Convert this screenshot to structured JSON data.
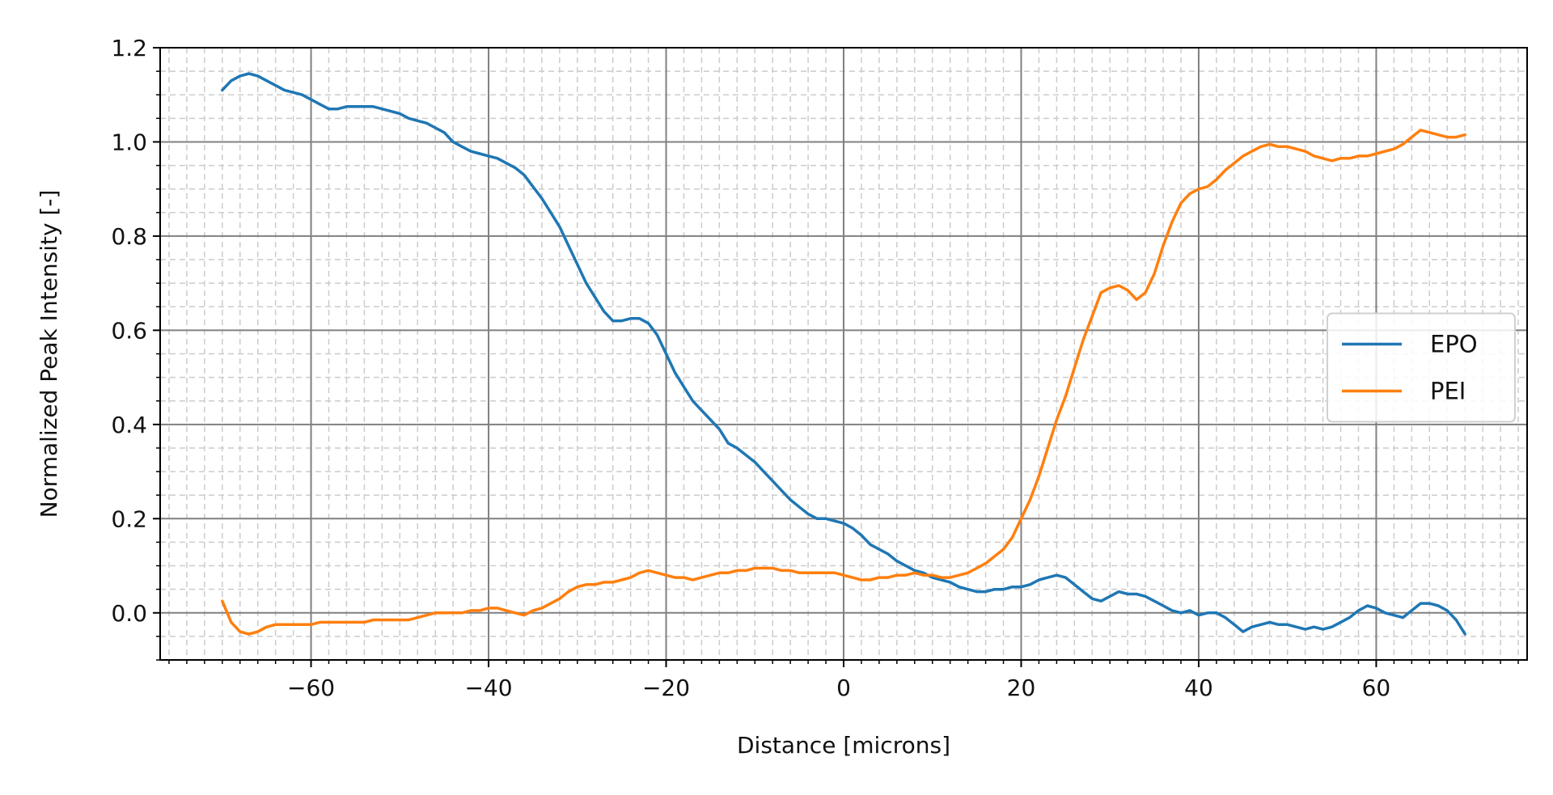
{
  "chart_data": {
    "type": "line",
    "title": "",
    "xlabel": "Distance [microns]",
    "ylabel": "Normalized Peak Intensity [-]",
    "xlim": [
      -77,
      77
    ],
    "ylim": [
      -0.1,
      1.2
    ],
    "x_ticks": [
      -60,
      -40,
      -20,
      0,
      20,
      40,
      60
    ],
    "x_tick_labels": [
      "−60",
      "−40",
      "−20",
      "0",
      "20",
      "40",
      "60"
    ],
    "y_ticks": [
      0.0,
      0.2,
      0.4,
      0.6,
      0.8,
      1.0,
      1.2
    ],
    "y_tick_labels": [
      "0.0",
      "0.2",
      "0.4",
      "0.6",
      "0.8",
      "1.0",
      "1.2"
    ],
    "x_minor_step": 2,
    "y_minor_step": 0.05,
    "grid": true,
    "legend_position": "center-right",
    "series": [
      {
        "name": "EPO",
        "color": "#1f77b4",
        "points": [
          [
            -70,
            1.11
          ],
          [
            -69,
            1.13
          ],
          [
            -68,
            1.14
          ],
          [
            -67,
            1.145
          ],
          [
            -66,
            1.14
          ],
          [
            -65,
            1.13
          ],
          [
            -64,
            1.12
          ],
          [
            -63,
            1.11
          ],
          [
            -62,
            1.105
          ],
          [
            -61,
            1.1
          ],
          [
            -60,
            1.09
          ],
          [
            -59,
            1.08
          ],
          [
            -58,
            1.07
          ],
          [
            -57,
            1.07
          ],
          [
            -56,
            1.075
          ],
          [
            -55,
            1.075
          ],
          [
            -54,
            1.075
          ],
          [
            -53,
            1.075
          ],
          [
            -52,
            1.07
          ],
          [
            -51,
            1.065
          ],
          [
            -50,
            1.06
          ],
          [
            -49,
            1.05
          ],
          [
            -48,
            1.045
          ],
          [
            -47,
            1.04
          ],
          [
            -46,
            1.03
          ],
          [
            -45,
            1.02
          ],
          [
            -44,
            1.0
          ],
          [
            -43,
            0.99
          ],
          [
            -42,
            0.98
          ],
          [
            -41,
            0.975
          ],
          [
            -40,
            0.97
          ],
          [
            -39,
            0.965
          ],
          [
            -38,
            0.955
          ],
          [
            -37,
            0.945
          ],
          [
            -36,
            0.93
          ],
          [
            -35,
            0.905
          ],
          [
            -34,
            0.88
          ],
          [
            -33,
            0.85
          ],
          [
            -32,
            0.82
          ],
          [
            -31,
            0.78
          ],
          [
            -30,
            0.74
          ],
          [
            -29,
            0.7
          ],
          [
            -28,
            0.67
          ],
          [
            -27,
            0.64
          ],
          [
            -26,
            0.62
          ],
          [
            -25,
            0.62
          ],
          [
            -24,
            0.625
          ],
          [
            -23,
            0.625
          ],
          [
            -22,
            0.615
          ],
          [
            -21,
            0.59
          ],
          [
            -20,
            0.55
          ],
          [
            -19,
            0.51
          ],
          [
            -18,
            0.48
          ],
          [
            -17,
            0.45
          ],
          [
            -16,
            0.43
          ],
          [
            -15,
            0.41
          ],
          [
            -14,
            0.39
          ],
          [
            -13,
            0.36
          ],
          [
            -12,
            0.35
          ],
          [
            -11,
            0.335
          ],
          [
            -10,
            0.32
          ],
          [
            -9,
            0.3
          ],
          [
            -8,
            0.28
          ],
          [
            -7,
            0.26
          ],
          [
            -6,
            0.24
          ],
          [
            -5,
            0.225
          ],
          [
            -4,
            0.21
          ],
          [
            -3,
            0.2
          ],
          [
            -2,
            0.2
          ],
          [
            -1,
            0.195
          ],
          [
            0,
            0.19
          ],
          [
            1,
            0.18
          ],
          [
            2,
            0.165
          ],
          [
            3,
            0.145
          ],
          [
            4,
            0.135
          ],
          [
            5,
            0.125
          ],
          [
            6,
            0.11
          ],
          [
            7,
            0.1
          ],
          [
            8,
            0.09
          ],
          [
            9,
            0.085
          ],
          [
            10,
            0.075
          ],
          [
            11,
            0.07
          ],
          [
            12,
            0.065
          ],
          [
            13,
            0.055
          ],
          [
            14,
            0.05
          ],
          [
            15,
            0.045
          ],
          [
            16,
            0.045
          ],
          [
            17,
            0.05
          ],
          [
            18,
            0.05
          ],
          [
            19,
            0.055
          ],
          [
            20,
            0.055
          ],
          [
            21,
            0.06
          ],
          [
            22,
            0.07
          ],
          [
            23,
            0.075
          ],
          [
            24,
            0.08
          ],
          [
            25,
            0.075
          ],
          [
            26,
            0.06
          ],
          [
            27,
            0.045
          ],
          [
            28,
            0.03
          ],
          [
            29,
            0.025
          ],
          [
            30,
            0.035
          ],
          [
            31,
            0.045
          ],
          [
            32,
            0.04
          ],
          [
            33,
            0.04
          ],
          [
            34,
            0.035
          ],
          [
            35,
            0.025
          ],
          [
            36,
            0.015
          ],
          [
            37,
            0.005
          ],
          [
            38,
            0.0
          ],
          [
            39,
            0.005
          ],
          [
            40,
            -0.005
          ],
          [
            41,
            0.0
          ],
          [
            42,
            0.0
          ],
          [
            43,
            -0.01
          ],
          [
            44,
            -0.025
          ],
          [
            45,
            -0.04
          ],
          [
            46,
            -0.03
          ],
          [
            47,
            -0.025
          ],
          [
            48,
            -0.02
          ],
          [
            49,
            -0.025
          ],
          [
            50,
            -0.025
          ],
          [
            51,
            -0.03
          ],
          [
            52,
            -0.035
          ],
          [
            53,
            -0.03
          ],
          [
            54,
            -0.035
          ],
          [
            55,
            -0.03
          ],
          [
            56,
            -0.02
          ],
          [
            57,
            -0.01
          ],
          [
            58,
            0.005
          ],
          [
            59,
            0.015
          ],
          [
            60,
            0.01
          ],
          [
            61,
            0.0
          ],
          [
            62,
            -0.005
          ],
          [
            63,
            -0.01
          ],
          [
            64,
            0.005
          ],
          [
            65,
            0.02
          ],
          [
            66,
            0.02
          ],
          [
            67,
            0.015
          ],
          [
            68,
            0.005
          ],
          [
            69,
            -0.015
          ],
          [
            70,
            -0.045
          ]
        ]
      },
      {
        "name": "PEI",
        "color": "#ff7f0e",
        "points": [
          [
            -70,
            0.025
          ],
          [
            -69,
            -0.02
          ],
          [
            -68,
            -0.04
          ],
          [
            -67,
            -0.045
          ],
          [
            -66,
            -0.04
          ],
          [
            -65,
            -0.03
          ],
          [
            -64,
            -0.025
          ],
          [
            -63,
            -0.025
          ],
          [
            -62,
            -0.025
          ],
          [
            -61,
            -0.025
          ],
          [
            -60,
            -0.025
          ],
          [
            -59,
            -0.02
          ],
          [
            -58,
            -0.02
          ],
          [
            -57,
            -0.02
          ],
          [
            -56,
            -0.02
          ],
          [
            -55,
            -0.02
          ],
          [
            -54,
            -0.02
          ],
          [
            -53,
            -0.015
          ],
          [
            -52,
            -0.015
          ],
          [
            -51,
            -0.015
          ],
          [
            -50,
            -0.015
          ],
          [
            -49,
            -0.015
          ],
          [
            -48,
            -0.01
          ],
          [
            -47,
            -0.005
          ],
          [
            -46,
            0.0
          ],
          [
            -45,
            0.0
          ],
          [
            -44,
            0.0
          ],
          [
            -43,
            0.0
          ],
          [
            -42,
            0.005
          ],
          [
            -41,
            0.005
          ],
          [
            -40,
            0.01
          ],
          [
            -39,
            0.01
          ],
          [
            -38,
            0.005
          ],
          [
            -37,
            0.0
          ],
          [
            -36,
            -0.005
          ],
          [
            -35,
            0.005
          ],
          [
            -34,
            0.01
          ],
          [
            -33,
            0.02
          ],
          [
            -32,
            0.03
          ],
          [
            -31,
            0.045
          ],
          [
            -30,
            0.055
          ],
          [
            -29,
            0.06
          ],
          [
            -28,
            0.06
          ],
          [
            -27,
            0.065
          ],
          [
            -26,
            0.065
          ],
          [
            -25,
            0.07
          ],
          [
            -24,
            0.075
          ],
          [
            -23,
            0.085
          ],
          [
            -22,
            0.09
          ],
          [
            -21,
            0.085
          ],
          [
            -20,
            0.08
          ],
          [
            -19,
            0.075
          ],
          [
            -18,
            0.075
          ],
          [
            -17,
            0.07
          ],
          [
            -16,
            0.075
          ],
          [
            -15,
            0.08
          ],
          [
            -14,
            0.085
          ],
          [
            -13,
            0.085
          ],
          [
            -12,
            0.09
          ],
          [
            -11,
            0.09
          ],
          [
            -10,
            0.095
          ],
          [
            -9,
            0.095
          ],
          [
            -8,
            0.095
          ],
          [
            -7,
            0.09
          ],
          [
            -6,
            0.09
          ],
          [
            -5,
            0.085
          ],
          [
            -4,
            0.085
          ],
          [
            -3,
            0.085
          ],
          [
            -2,
            0.085
          ],
          [
            -1,
            0.085
          ],
          [
            0,
            0.08
          ],
          [
            1,
            0.075
          ],
          [
            2,
            0.07
          ],
          [
            3,
            0.07
          ],
          [
            4,
            0.075
          ],
          [
            5,
            0.075
          ],
          [
            6,
            0.08
          ],
          [
            7,
            0.08
          ],
          [
            8,
            0.085
          ],
          [
            9,
            0.08
          ],
          [
            10,
            0.08
          ],
          [
            11,
            0.075
          ],
          [
            12,
            0.075
          ],
          [
            13,
            0.08
          ],
          [
            14,
            0.085
          ],
          [
            15,
            0.095
          ],
          [
            16,
            0.105
          ],
          [
            17,
            0.12
          ],
          [
            18,
            0.135
          ],
          [
            19,
            0.16
          ],
          [
            20,
            0.2
          ],
          [
            21,
            0.24
          ],
          [
            22,
            0.29
          ],
          [
            23,
            0.35
          ],
          [
            24,
            0.41
          ],
          [
            25,
            0.46
          ],
          [
            26,
            0.52
          ],
          [
            27,
            0.58
          ],
          [
            28,
            0.63
          ],
          [
            29,
            0.68
          ],
          [
            30,
            0.69
          ],
          [
            31,
            0.695
          ],
          [
            32,
            0.685
          ],
          [
            33,
            0.665
          ],
          [
            34,
            0.68
          ],
          [
            35,
            0.72
          ],
          [
            36,
            0.78
          ],
          [
            37,
            0.83
          ],
          [
            38,
            0.87
          ],
          [
            39,
            0.89
          ],
          [
            40,
            0.9
          ],
          [
            41,
            0.905
          ],
          [
            42,
            0.92
          ],
          [
            43,
            0.94
          ],
          [
            44,
            0.955
          ],
          [
            45,
            0.97
          ],
          [
            46,
            0.98
          ],
          [
            47,
            0.99
          ],
          [
            48,
            0.995
          ],
          [
            49,
            0.99
          ],
          [
            50,
            0.99
          ],
          [
            51,
            0.985
          ],
          [
            52,
            0.98
          ],
          [
            53,
            0.97
          ],
          [
            54,
            0.965
          ],
          [
            55,
            0.96
          ],
          [
            56,
            0.965
          ],
          [
            57,
            0.965
          ],
          [
            58,
            0.97
          ],
          [
            59,
            0.97
          ],
          [
            60,
            0.975
          ],
          [
            61,
            0.98
          ],
          [
            62,
            0.985
          ],
          [
            63,
            0.995
          ],
          [
            64,
            1.01
          ],
          [
            65,
            1.025
          ],
          [
            66,
            1.02
          ],
          [
            67,
            1.015
          ],
          [
            68,
            1.01
          ],
          [
            69,
            1.01
          ],
          [
            70,
            1.015
          ]
        ]
      }
    ]
  }
}
